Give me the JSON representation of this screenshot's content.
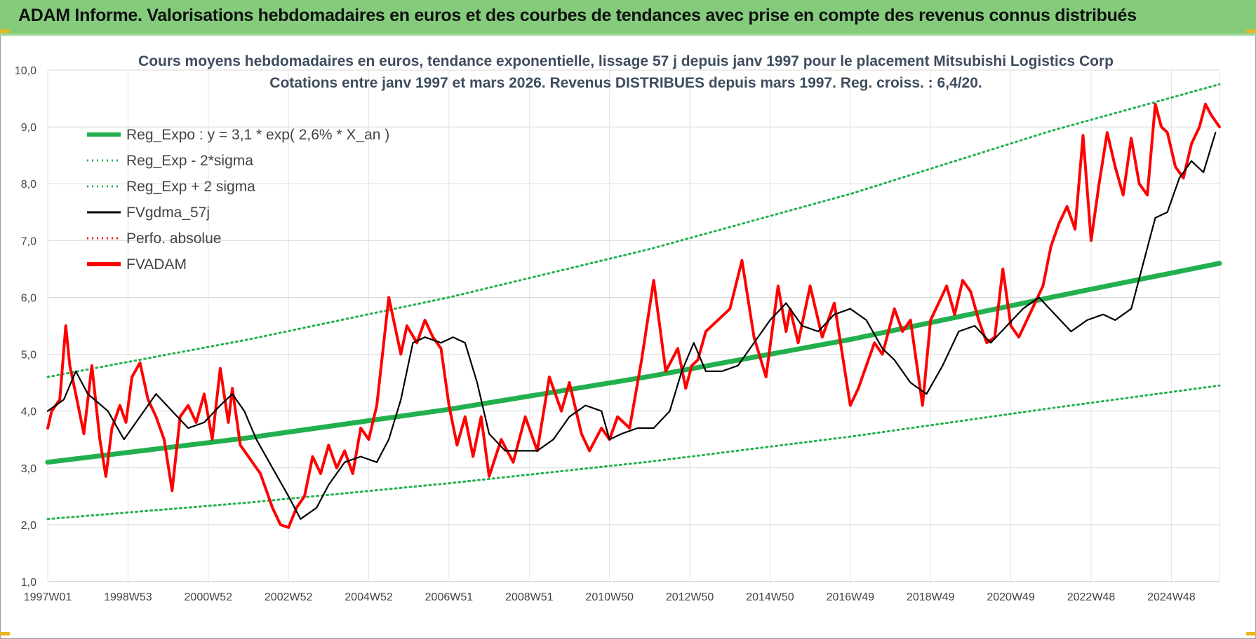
{
  "header": {
    "title": "ADAM Informe. Valorisations hebdomadaires en euros et des courbes de tendances avec prise en compte des revenus connus distribués"
  },
  "colors": {
    "banner": "#84cc7c",
    "reg_expo": "#22b04e",
    "reg_band": "#22b04e",
    "fvgdma": "#000000",
    "perfo": "#ff0000",
    "fvadam": "#ff0000"
  },
  "chart_data": {
    "type": "line",
    "title": "Cours moyens hebdomadaires en euros, tendance exponentielle, lissage 57 j depuis janv 1997  pour le placement Mitsubishi Logistics Corp",
    "subtitle": "Cotations entre janv 1997 et mars 2026. Revenus DISTRIBUES depuis mars 1997.  Reg. croiss. : 6,4/20.",
    "xlabel": "",
    "ylabel": "",
    "ylim": [
      1.0,
      10.0
    ],
    "xlim": [
      1997.0,
      2026.2
    ],
    "y_ticks": [
      "1,0",
      "2,0",
      "3,0",
      "4,0",
      "5,0",
      "6,0",
      "7,0",
      "8,0",
      "9,0",
      "10,0"
    ],
    "x_ticks": [
      {
        "label": "1997W01",
        "x": 1997.0
      },
      {
        "label": "1998W53",
        "x": 1999.0
      },
      {
        "label": "2000W52",
        "x": 2001.0
      },
      {
        "label": "2002W52",
        "x": 2003.0
      },
      {
        "label": "2004W52",
        "x": 2005.0
      },
      {
        "label": "2006W51",
        "x": 2007.0
      },
      {
        "label": "2008W51",
        "x": 2009.0
      },
      {
        "label": "2010W50",
        "x": 2011.0
      },
      {
        "label": "2012W50",
        "x": 2013.0
      },
      {
        "label": "2014W50",
        "x": 2015.0
      },
      {
        "label": "2016W49",
        "x": 2017.0
      },
      {
        "label": "2018W49",
        "x": 2019.0
      },
      {
        "label": "2020W49",
        "x": 2021.0
      },
      {
        "label": "2022W48",
        "x": 2023.0
      },
      {
        "label": "2024W48",
        "x": 2025.0
      }
    ],
    "grid": true,
    "legend_position": "top-left",
    "series": [
      {
        "name": "Reg_Expo : y = 3,1 * exp( 2,6% *  X_an )",
        "style": "solid-thick",
        "color": "#22b04e",
        "x": [
          1997.0,
          2002.0,
          2007.0,
          2012.0,
          2017.0,
          2022.0,
          2026.2
        ],
        "values": [
          3.1,
          3.53,
          4.03,
          4.61,
          5.26,
          6.0,
          6.6
        ]
      },
      {
        "name": "Reg_Exp - 2*sigma",
        "style": "dotted",
        "color": "#22b04e",
        "x": [
          1997.0,
          2002.0,
          2007.0,
          2012.0,
          2017.0,
          2022.0,
          2026.2
        ],
        "values": [
          2.1,
          2.39,
          2.73,
          3.11,
          3.55,
          4.05,
          4.45
        ]
      },
      {
        "name": "Reg_Exp + 2 sigma",
        "style": "dotted",
        "color": "#22b04e",
        "x": [
          1997.0,
          2002.0,
          2007.0,
          2012.0,
          2017.0,
          2022.0,
          2026.2
        ],
        "values": [
          4.6,
          5.26,
          6.0,
          6.85,
          7.82,
          8.93,
          9.75
        ]
      },
      {
        "name": "FVgdma_57j",
        "style": "solid",
        "color": "#000000",
        "x": [
          1997.0,
          1997.4,
          1997.7,
          1998.0,
          1998.5,
          1998.9,
          1999.3,
          1999.7,
          2000.1,
          2000.5,
          2000.9,
          2001.3,
          2001.6,
          2001.9,
          2002.2,
          2002.6,
          2003.0,
          2003.3,
          2003.7,
          2004.0,
          2004.4,
          2004.8,
          2005.2,
          2005.5,
          2005.8,
          2006.1,
          2006.4,
          2006.8,
          2007.1,
          2007.4,
          2007.7,
          2008.0,
          2008.4,
          2008.8,
          2009.2,
          2009.6,
          2010.0,
          2010.4,
          2010.8,
          2011.0,
          2011.3,
          2011.7,
          2012.1,
          2012.5,
          2012.8,
          2013.1,
          2013.4,
          2013.8,
          2014.2,
          2014.6,
          2015.0,
          2015.4,
          2015.8,
          2016.2,
          2016.6,
          2017.0,
          2017.4,
          2017.8,
          2018.1,
          2018.5,
          2018.9,
          2019.3,
          2019.7,
          2020.1,
          2020.5,
          2020.9,
          2021.3,
          2021.7,
          2022.1,
          2022.5,
          2022.9,
          2023.3,
          2023.6,
          2024.0,
          2024.3,
          2024.6,
          2024.9,
          2025.2,
          2025.5,
          2025.8,
          2026.1
        ],
        "values": [
          4.0,
          4.2,
          4.7,
          4.3,
          4.0,
          3.5,
          3.9,
          4.3,
          4.0,
          3.7,
          3.8,
          4.1,
          4.3,
          4.0,
          3.5,
          3.0,
          2.5,
          2.1,
          2.3,
          2.7,
          3.1,
          3.2,
          3.1,
          3.5,
          4.2,
          5.2,
          5.3,
          5.2,
          5.3,
          5.2,
          4.5,
          3.6,
          3.3,
          3.3,
          3.3,
          3.5,
          3.9,
          4.1,
          4.0,
          3.5,
          3.6,
          3.7,
          3.7,
          4.0,
          4.7,
          5.2,
          4.7,
          4.7,
          4.8,
          5.2,
          5.6,
          5.9,
          5.5,
          5.4,
          5.7,
          5.8,
          5.6,
          5.1,
          4.9,
          4.5,
          4.3,
          4.8,
          5.4,
          5.5,
          5.2,
          5.5,
          5.8,
          6.0,
          5.7,
          5.4,
          5.6,
          5.7,
          5.6,
          5.8,
          6.6,
          7.4,
          7.5,
          8.1,
          8.4,
          8.2,
          8.9
        ]
      },
      {
        "name": "Perfo. absolue",
        "style": "dotted",
        "color": "#ff0000",
        "x": [],
        "values": []
      },
      {
        "name": "FVADAM",
        "style": "solid-thick",
        "color": "#ff0000",
        "x": [
          1997.0,
          1997.1,
          1997.3,
          1997.45,
          1997.55,
          1997.7,
          1997.9,
          1998.1,
          1998.3,
          1998.45,
          1998.6,
          1998.8,
          1998.95,
          1999.1,
          1999.3,
          1999.5,
          1999.7,
          1999.9,
          2000.1,
          2000.3,
          2000.5,
          2000.7,
          2000.9,
          2001.1,
          2001.3,
          2001.5,
          2001.6,
          2001.8,
          2002.0,
          2002.3,
          2002.6,
          2002.8,
          2003.0,
          2003.2,
          2003.4,
          2003.6,
          2003.8,
          2004.0,
          2004.2,
          2004.4,
          2004.6,
          2004.8,
          2005.0,
          2005.2,
          2005.5,
          2005.8,
          2005.95,
          2006.2,
          2006.4,
          2006.6,
          2006.8,
          2007.0,
          2007.2,
          2007.4,
          2007.6,
          2007.8,
          2008.0,
          2008.3,
          2008.6,
          2008.9,
          2009.2,
          2009.5,
          2009.8,
          2010.0,
          2010.3,
          2010.5,
          2010.8,
          2011.0,
          2011.2,
          2011.5,
          2011.8,
          2012.1,
          2012.4,
          2012.7,
          2012.9,
          2013.05,
          2013.2,
          2013.4,
          2013.7,
          2014.0,
          2014.3,
          2014.6,
          2014.9,
          2015.2,
          2015.4,
          2015.5,
          2015.7,
          2016.0,
          2016.3,
          2016.6,
          2016.8,
          2017.0,
          2017.2,
          2017.4,
          2017.6,
          2017.8,
          2018.1,
          2018.3,
          2018.5,
          2018.8,
          2019.0,
          2019.2,
          2019.4,
          2019.6,
          2019.8,
          2020.0,
          2020.2,
          2020.4,
          2020.6,
          2020.8,
          2021.0,
          2021.2,
          2021.4,
          2021.6,
          2021.8,
          2022.0,
          2022.2,
          2022.4,
          2022.6,
          2022.8,
          2023.0,
          2023.2,
          2023.4,
          2023.6,
          2023.8,
          2024.0,
          2024.2,
          2024.4,
          2024.6,
          2024.75,
          2024.9,
          2025.1,
          2025.3,
          2025.5,
          2025.7,
          2025.85,
          2026.0,
          2026.2
        ],
        "values": [
          3.7,
          4.0,
          4.2,
          5.5,
          4.8,
          4.3,
          3.6,
          4.8,
          3.5,
          2.85,
          3.7,
          4.1,
          3.8,
          4.6,
          4.85,
          4.2,
          3.9,
          3.5,
          2.6,
          3.9,
          4.1,
          3.8,
          4.3,
          3.5,
          4.75,
          3.8,
          4.4,
          3.4,
          3.2,
          2.9,
          2.3,
          2.0,
          1.95,
          2.3,
          2.5,
          3.2,
          2.9,
          3.4,
          3.0,
          3.3,
          2.9,
          3.7,
          3.5,
          4.1,
          6.0,
          5.0,
          5.5,
          5.2,
          5.6,
          5.3,
          5.1,
          4.1,
          3.4,
          3.9,
          3.2,
          3.9,
          2.85,
          3.5,
          3.1,
          3.9,
          3.3,
          4.6,
          4.0,
          4.5,
          3.6,
          3.3,
          3.7,
          3.5,
          3.9,
          3.7,
          4.9,
          6.3,
          4.7,
          5.1,
          4.4,
          4.8,
          4.9,
          5.4,
          5.6,
          5.8,
          6.65,
          5.3,
          4.6,
          6.2,
          5.4,
          5.8,
          5.2,
          6.2,
          5.3,
          5.9,
          5.0,
          4.1,
          4.4,
          4.8,
          5.2,
          5.0,
          5.8,
          5.4,
          5.6,
          4.1,
          5.6,
          5.9,
          6.2,
          5.7,
          6.3,
          6.1,
          5.6,
          5.2,
          5.3,
          6.5,
          5.5,
          5.3,
          5.6,
          5.9,
          6.2,
          6.9,
          7.3,
          7.6,
          7.2,
          8.85,
          7.0,
          8.0,
          8.9,
          8.3,
          7.8,
          8.8,
          8.0,
          7.8,
          9.4,
          9.0,
          8.9,
          8.3,
          8.1,
          8.7,
          9.0,
          9.4,
          9.2,
          9.0
        ]
      }
    ]
  }
}
